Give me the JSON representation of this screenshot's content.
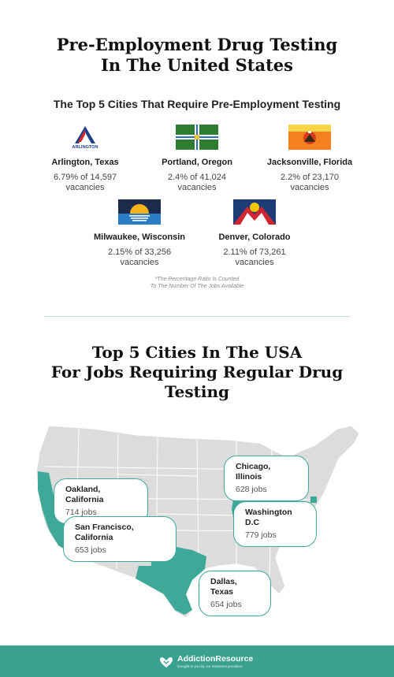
{
  "header": {
    "title_line1": "Pre-Employment Drug Testing",
    "title_line2": "In The United States",
    "subtitle": "The Top 5 Cities That Require Pre-Employment Testing"
  },
  "cities": [
    {
      "name": "Arlington, Texas",
      "stat": "6.79% of 14,597",
      "unit": "vacancies",
      "flag_text": "ARLINGTON"
    },
    {
      "name": "Portland, Oregon",
      "stat": "2.4% of 41,024",
      "unit": "vacancies"
    },
    {
      "name": "Jacksonville, Florida",
      "stat": "2.2% of 23,170",
      "unit": "vacancies"
    },
    {
      "name": "Milwaukee, Wisconsin",
      "stat": "2.15% of 33,256",
      "unit": "vacancies"
    },
    {
      "name": "Denver, Colorado",
      "stat": "2.11% of 73,261",
      "unit": "vacancies"
    }
  ],
  "note": {
    "line1": "*The Percentage Ratio Is Counted",
    "line2": "To The Number Of The Jobs Available"
  },
  "section2": {
    "title_line1": "Top 5 Cities In The USA",
    "title_line2": "For Jobs Requiring Regular Drug",
    "title_line3": "Testing"
  },
  "map_callouts": [
    {
      "name": "Chicago, Illinois",
      "jobs": "628 jobs"
    },
    {
      "name": "Oakland, California",
      "jobs": "714 jobs"
    },
    {
      "name": "Washington D.C",
      "jobs": "779 jobs"
    },
    {
      "name": "San Francisco, California",
      "jobs": "653 jobs"
    },
    {
      "name": "Dallas, Texas",
      "jobs": "654 jobs"
    }
  ],
  "footer": {
    "brand": "AddictionResource",
    "tagline": "brought to you by our treatment providers"
  },
  "colors": {
    "accent": "#3aa08f",
    "map_state": "#dcdcdc",
    "map_highlight": "#3fa999"
  }
}
